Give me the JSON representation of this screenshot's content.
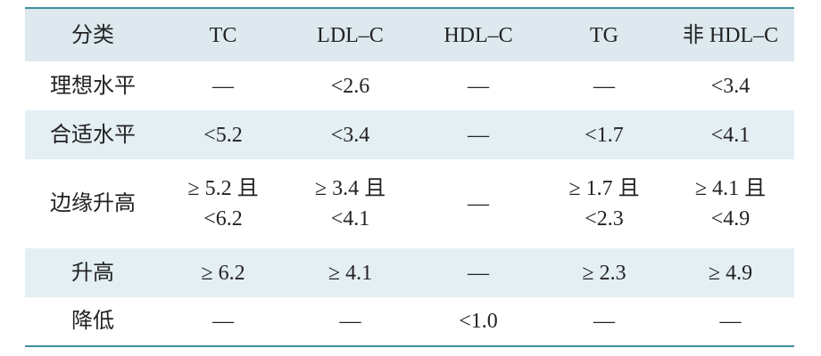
{
  "table": {
    "header": [
      "分类",
      "TC",
      "LDL–C",
      "HDL–C",
      "TG",
      "非 HDL–C"
    ],
    "rows": [
      [
        [
          "理想水平"
        ],
        [
          "—"
        ],
        [
          "<2.6"
        ],
        [
          "—"
        ],
        [
          "—"
        ],
        [
          "<3.4"
        ]
      ],
      [
        [
          "合适水平"
        ],
        [
          "<5.2"
        ],
        [
          "<3.4"
        ],
        [
          "—"
        ],
        [
          "<1.7"
        ],
        [
          "<4.1"
        ]
      ],
      [
        [
          "边缘升高"
        ],
        [
          "≥ 5.2 且",
          "<6.2"
        ],
        [
          "≥ 3.4 且",
          "<4.1"
        ],
        [
          "—"
        ],
        [
          "≥ 1.7 且",
          "<2.3"
        ],
        [
          "≥ 4.1 且",
          "<4.9"
        ]
      ],
      [
        [
          "升高"
        ],
        [
          "≥ 6.2"
        ],
        [
          "≥ 4.1"
        ],
        [
          "—"
        ],
        [
          "≥ 2.3"
        ],
        [
          "≥ 4.9"
        ]
      ],
      [
        [
          "降低"
        ],
        [
          "—"
        ],
        [
          "—"
        ],
        [
          "<1.0"
        ],
        [
          "—"
        ],
        [
          "—"
        ]
      ]
    ]
  }
}
